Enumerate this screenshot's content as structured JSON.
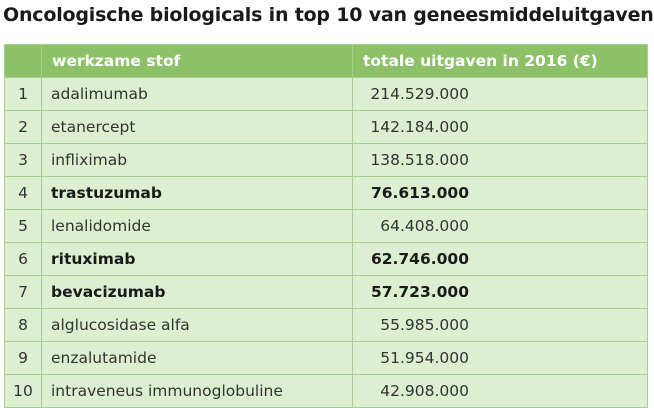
{
  "title": "Oncologische biologicals in top 10 van geneesmiddeluitgaven",
  "table": {
    "headers": [
      "",
      "werkzame stof",
      "totale uitgaven in 2016 (€)"
    ],
    "rows": [
      {
        "rank": "1",
        "name": "adalimumab",
        "value": "214.529.000",
        "bold": false
      },
      {
        "rank": "2",
        "name": "etanercept",
        "value": "142.184.000",
        "bold": false
      },
      {
        "rank": "3",
        "name": "infliximab",
        "value": "138.518.000",
        "bold": false
      },
      {
        "rank": "4",
        "name": "trastuzumab",
        "value": "76.613.000",
        "bold": true
      },
      {
        "rank": "5",
        "name": "lenalidomide",
        "value": "64.408.000",
        "bold": false
      },
      {
        "rank": "6",
        "name": "rituximab",
        "value": "62.746.000",
        "bold": true
      },
      {
        "rank": "7",
        "name": "bevacizumab",
        "value": "57.723.000",
        "bold": true
      },
      {
        "rank": "8",
        "name": "alglucosidase alfa",
        "value": "55.985.000",
        "bold": false
      },
      {
        "rank": "9",
        "name": "enzalutamide",
        "value": "51.954.000",
        "bold": false
      },
      {
        "rank": "10",
        "name": "intraveneus immunoglobuline",
        "value": "42.908.000",
        "bold": false
      }
    ]
  },
  "colors": {
    "header_bg": "#8dc168",
    "row_bg": "#dcefd0",
    "border": "#a8d08a"
  }
}
